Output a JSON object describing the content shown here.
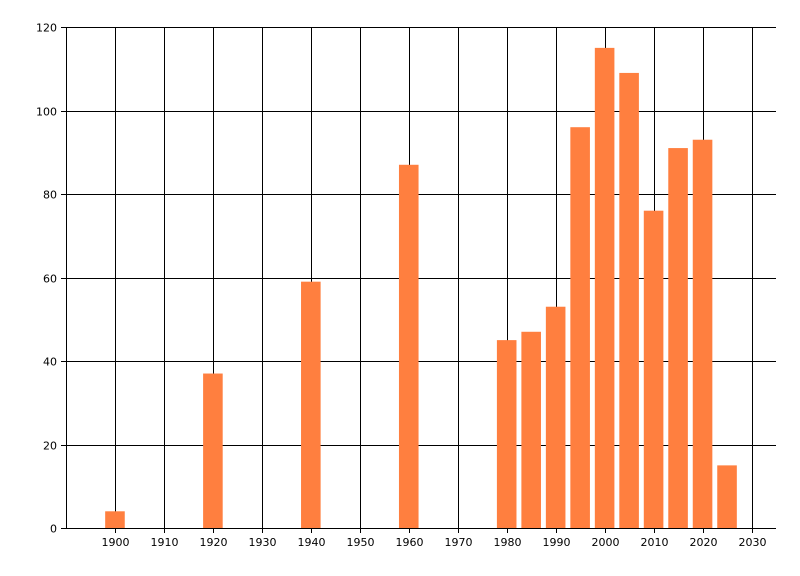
{
  "chart_data": {
    "type": "bar",
    "title": "",
    "xlabel": "",
    "ylabel": "",
    "bar_color": "#FF7F3F",
    "grid": true,
    "x": [
      1900,
      1920,
      1940,
      1960,
      1980,
      1985,
      1990,
      1995,
      2000,
      2005,
      2010,
      2015,
      2020,
      2025
    ],
    "values": [
      4,
      37,
      59,
      87,
      45,
      47,
      53,
      96,
      115,
      109,
      76,
      91,
      93,
      15
    ],
    "xlim": [
      1890,
      2035
    ],
    "ylim": [
      0,
      120
    ],
    "xticks": [
      "1900",
      "1910",
      "1920",
      "1930",
      "1940",
      "1950",
      "1960",
      "1970",
      "1980",
      "1990",
      "2000",
      "2010",
      "2020",
      "2030"
    ],
    "yticks": [
      "0",
      "20",
      "40",
      "60",
      "80",
      "100",
      "120"
    ]
  }
}
